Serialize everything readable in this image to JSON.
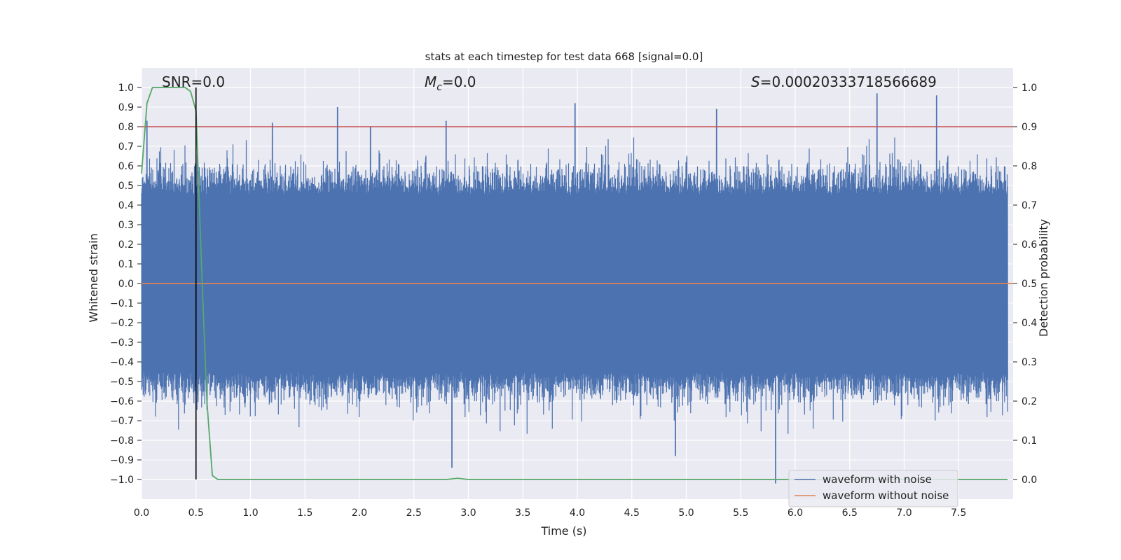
{
  "chart_data": {
    "type": "line",
    "title": "stats at each timestep for test data 668 [signal=0.0]",
    "xlabel": "Time (s)",
    "ylabel_left": "Whitened strain",
    "ylabel_right": "Detection probability",
    "xlim": [
      0.0,
      8.0
    ],
    "ylim_left": [
      -1.1,
      1.1
    ],
    "ylim_right": [
      -0.05,
      1.05
    ],
    "xticks": [
      "0.0",
      "0.5",
      "1.0",
      "1.5",
      "2.0",
      "2.5",
      "3.0",
      "3.5",
      "4.0",
      "4.5",
      "5.0",
      "5.5",
      "6.0",
      "6.5",
      "7.0",
      "7.5"
    ],
    "yticks_left": [
      "1.0",
      "0.9",
      "0.8",
      "0.7",
      "0.6",
      "0.5",
      "0.4",
      "0.3",
      "0.2",
      "0.1",
      "0.0",
      "−0.1",
      "−0.2",
      "−0.3",
      "−0.4",
      "−0.5",
      "−0.6",
      "−0.7",
      "−0.8",
      "−0.9",
      "−1.0"
    ],
    "yticks_right": [
      "1.0",
      "0.9",
      "0.8",
      "0.7",
      "0.6",
      "0.5",
      "0.4",
      "0.3",
      "0.2",
      "0.1",
      "0.0"
    ],
    "annotations": {
      "snr": "SNR=0.0",
      "mc_symbol": "M",
      "mc_sub": "c",
      "mc_value": "=0.0",
      "s_symbol": "S",
      "s_value": "=0.00020333718566689"
    },
    "grid": true,
    "legend_position": "lower-right",
    "colors": {
      "noise": "#4c72b0",
      "clean": "#dd8452",
      "prob": "#55a868",
      "threshold": "#c44e52",
      "marker": "#000000",
      "background": "#eaeaf2"
    },
    "series": [
      {
        "name": "waveform with noise",
        "axis": "left",
        "envelope_note_points": [
          {
            "x": 0.05,
            "y": 0.83
          },
          {
            "x": 1.2,
            "y": 0.82
          },
          {
            "x": 1.8,
            "y": 0.9
          },
          {
            "x": 2.1,
            "y": 0.8
          },
          {
            "x": 2.8,
            "y": 0.83
          },
          {
            "x": 3.98,
            "y": 0.92
          },
          {
            "x": 5.28,
            "y": 0.89
          },
          {
            "x": 6.75,
            "y": 0.97
          },
          {
            "x": 7.3,
            "y": 0.96
          },
          {
            "x": 2.85,
            "y": -0.94
          },
          {
            "x": 5.82,
            "y": -1.02
          },
          {
            "x": 4.9,
            "y": -0.88
          }
        ],
        "typical_amplitude": 0.45
      },
      {
        "name": "waveform without noise",
        "axis": "left",
        "x": [
          0.0,
          8.0
        ],
        "y": [
          0.0,
          0.0
        ]
      },
      {
        "name": "detection probability",
        "axis": "right",
        "x": [
          0.0,
          0.05,
          0.1,
          0.15,
          0.2,
          0.25,
          0.3,
          0.35,
          0.4,
          0.45,
          0.5,
          0.55,
          0.6,
          0.65,
          0.7,
          0.75,
          1.0,
          2.0,
          2.8,
          2.9,
          3.0,
          3.1,
          4.0,
          5.0,
          6.0,
          7.0,
          7.95
        ],
        "y": [
          0.78,
          0.96,
          1.0,
          1.0,
          1.0,
          1.0,
          1.0,
          1.0,
          1.0,
          0.99,
          0.94,
          0.55,
          0.2,
          0.01,
          0.0,
          0.0,
          0.0,
          0.0,
          0.0,
          0.003,
          0.0,
          0.0,
          0.0,
          0.0,
          0.0,
          0.0,
          0.0
        ]
      },
      {
        "name": "threshold",
        "axis": "right",
        "x": [
          0.0,
          8.0
        ],
        "y": [
          0.9,
          0.9
        ]
      },
      {
        "name": "time marker",
        "axis": "x",
        "x": [
          0.5,
          0.5
        ],
        "y": [
          -1.0,
          1.0
        ]
      }
    ],
    "legend": [
      "waveform with noise",
      "waveform without noise"
    ]
  }
}
